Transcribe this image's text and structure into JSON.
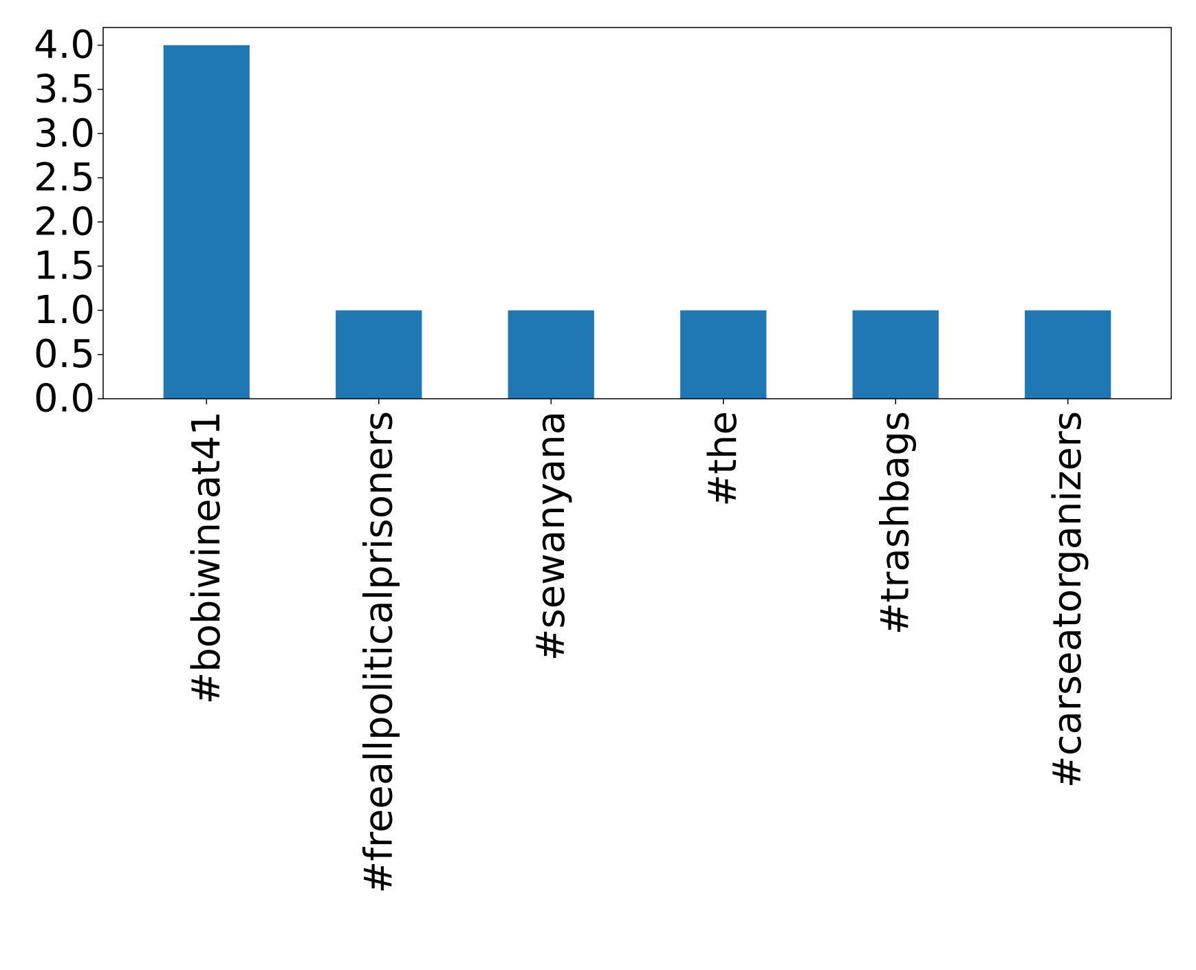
{
  "chart_data": {
    "type": "bar",
    "title": "",
    "xlabel": "",
    "ylabel": "",
    "categories": [
      "#bobiwineat41",
      "#freeallpoliticalprisoners",
      "#sewanyana",
      "#the",
      "#trashbags",
      "#carseatorganizers"
    ],
    "values": [
      4,
      1,
      1,
      1,
      1,
      1
    ],
    "ylim": [
      0,
      4.2
    ],
    "yticks": [
      "0.0",
      "0.5",
      "1.0",
      "1.5",
      "2.0",
      "2.5",
      "3.0",
      "3.5",
      "4.0"
    ],
    "grid": false,
    "legend": "none",
    "bar_color": "#1f77b4"
  }
}
